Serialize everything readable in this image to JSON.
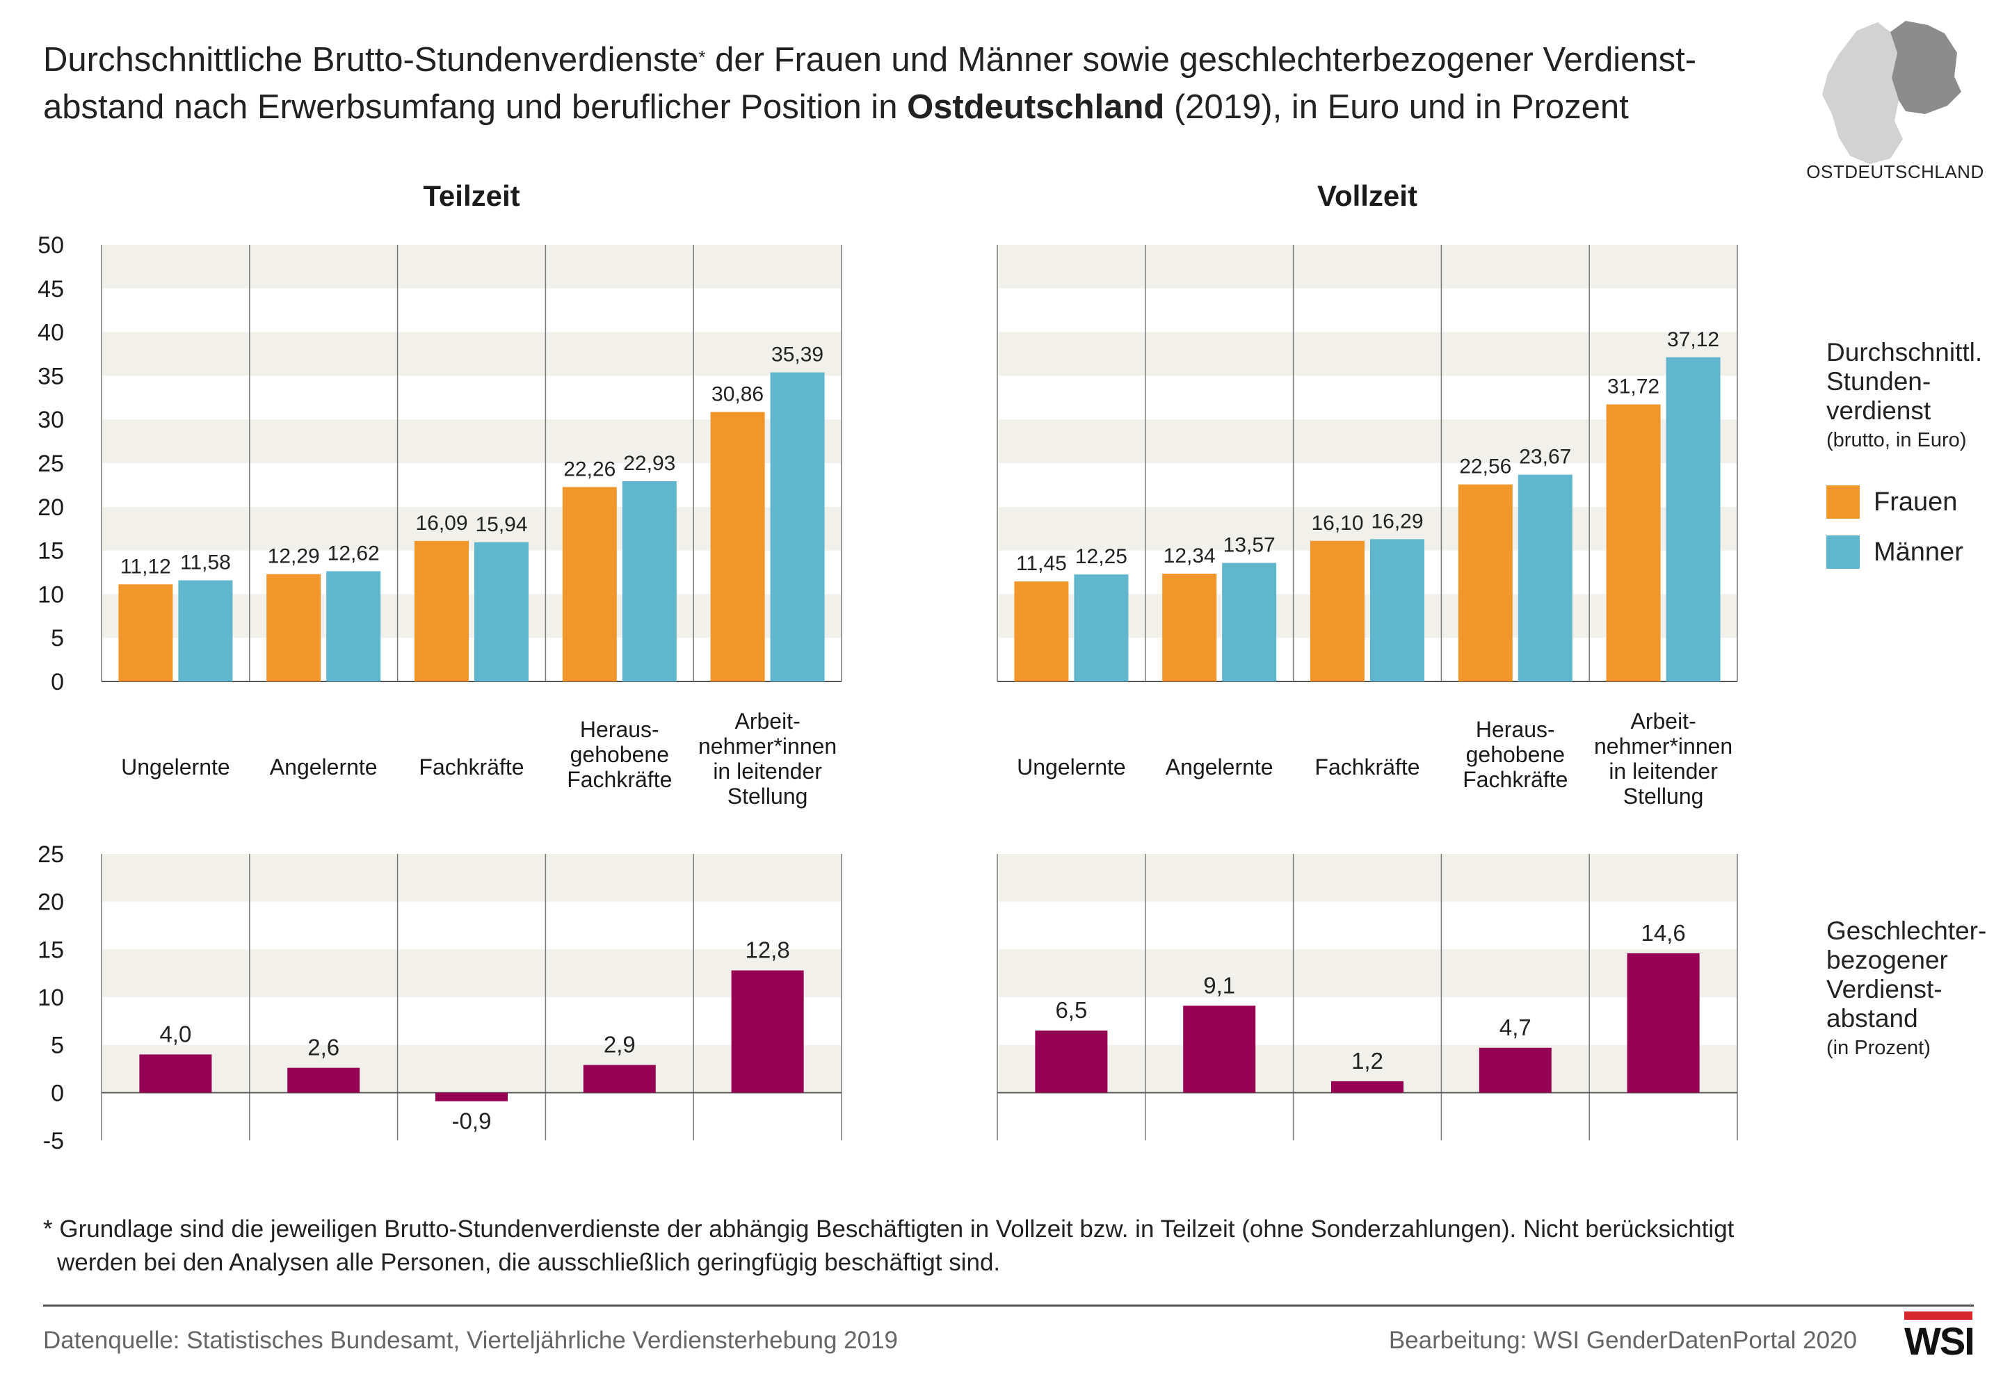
{
  "title": {
    "line1_a": "Durchschnittliche Brutto-Stundenverdienste",
    "line1_star": "*",
    "line1_b": " der Frauen und Männer sowie geschlechterbezogener Verdienst-",
    "line2_a": "abstand nach Erwerbsumfang und beruflicher Position in ",
    "line2_bold": "Ostdeutschland",
    "line2_b": " (2019), in Euro und in Prozent"
  },
  "map": {
    "label": "OSTDEUTSCHLAND",
    "icon": "germany-map-icon",
    "highlight_color": "#8c8c8c",
    "base_color": "#d2d2d2"
  },
  "colors": {
    "frauen": "#f0962a",
    "maenner": "#5fb6cd",
    "gap": "#950052",
    "band": "#f1f0ea"
  },
  "legend": {
    "wage_heading": [
      "Durchschnittl.",
      "Stunden-",
      "verdienst"
    ],
    "wage_sub": "(brutto, in Euro)",
    "frauen": "Frauen",
    "maenner": "Männer",
    "gap_heading": [
      "Geschlechter-",
      "bezogener",
      "Verdienst-",
      "abstand"
    ],
    "gap_sub": "(in Prozent)"
  },
  "chart_data": {
    "type": "bar",
    "categories": [
      [
        "Ungelernte"
      ],
      [
        "Angelernte"
      ],
      [
        "Fachkräfte"
      ],
      [
        "Heraus-",
        "gehobene",
        "Fachkräfte"
      ],
      [
        "Arbeit-",
        "nehmer*innen",
        "in leitender",
        "Stellung"
      ]
    ],
    "wage_axis": {
      "ylim": [
        0,
        50
      ],
      "ticks": [
        "0",
        "5",
        "10",
        "15",
        "20",
        "25",
        "30",
        "35",
        "40",
        "45",
        "50"
      ]
    },
    "gap_axis": {
      "ylim": [
        -5,
        25
      ],
      "ticks": [
        "-5",
        "0",
        "5",
        "10",
        "15",
        "20",
        "25"
      ]
    },
    "panels": [
      {
        "title": "Teilzeit",
        "wages": [
          {
            "name": "Frauen",
            "values": [
              11.12,
              12.29,
              16.09,
              22.26,
              30.86
            ],
            "labels": [
              "11,12",
              "12,29",
              "16,09",
              "22,26",
              "30,86"
            ]
          },
          {
            "name": "Männer",
            "values": [
              11.58,
              12.62,
              15.94,
              22.93,
              35.39
            ],
            "labels": [
              "11,58",
              "12,62",
              "15,94",
              "22,93",
              "35,39"
            ]
          }
        ],
        "gap": {
          "values": [
            4.0,
            2.6,
            -0.9,
            2.9,
            12.8
          ],
          "labels": [
            "4,0",
            "2,6",
            "-0,9",
            "2,9",
            "12,8"
          ]
        }
      },
      {
        "title": "Vollzeit",
        "wages": [
          {
            "name": "Frauen",
            "values": [
              11.45,
              12.34,
              16.1,
              22.56,
              31.72
            ],
            "labels": [
              "11,45",
              "12,34",
              "16,10",
              "22,56",
              "31,72"
            ]
          },
          {
            "name": "Männer",
            "values": [
              12.25,
              13.57,
              16.29,
              23.67,
              37.12
            ],
            "labels": [
              "12,25",
              "13,57",
              "16,29",
              "23,67",
              "37,12"
            ]
          }
        ],
        "gap": {
          "values": [
            6.5,
            9.1,
            1.2,
            4.7,
            14.6
          ],
          "labels": [
            "6,5",
            "9,1",
            "1,2",
            "4,7",
            "14,6"
          ]
        }
      }
    ]
  },
  "footnote": {
    "line1": "* Grundlage sind die jeweiligen Brutto-Stundenverdienste der abhängig Beschäftigten in Vollzeit bzw. in Teilzeit (ohne Sonderzahlungen). Nicht berücksichtigt",
    "line2": "werden bei den Analysen alle Personen, die ausschließlich geringfügig beschäftigt sind."
  },
  "source": "Datenquelle: Statistisches Bundesamt, Vierteljährliche Verdiensterhebung 2019",
  "credit": "Bearbeitung: WSI GenderDatenPortal 2020",
  "logo_text": "WSI"
}
